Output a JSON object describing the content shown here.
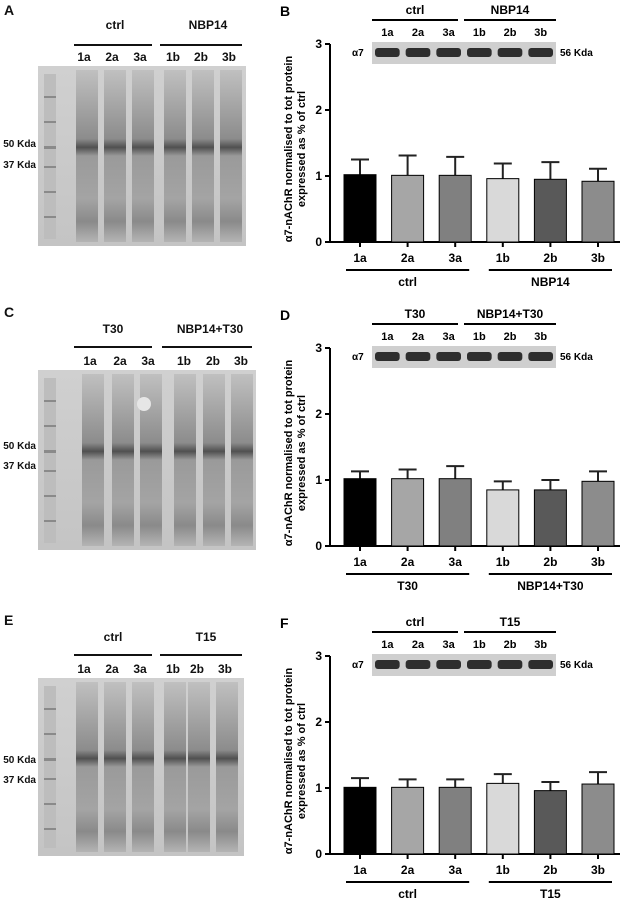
{
  "gels": [
    {
      "letter": "A",
      "group1_label": "ctrl",
      "group2_label": "NBP14",
      "lanes": [
        "1a",
        "2a",
        "3a",
        "1b",
        "2b",
        "3b"
      ],
      "markers": [
        "50 Kda",
        "37 Kda"
      ]
    },
    {
      "letter": "C",
      "group1_label": "T30",
      "group2_label": "NBP14+T30",
      "lanes": [
        "1a",
        "2a",
        "3a",
        "1b",
        "2b",
        "3b"
      ],
      "markers": [
        "50 Kda",
        "37 Kda"
      ]
    },
    {
      "letter": "E",
      "group1_label": "ctrl",
      "group2_label": "T15",
      "lanes": [
        "1a",
        "2a",
        "3a",
        "1b",
        "2b",
        "3b"
      ],
      "markers": [
        "50 Kda",
        "37 Kda"
      ]
    }
  ],
  "chart_data": [
    {
      "panel": "B",
      "type": "bar",
      "ylabel_line1": "α7-nAChR normalised to tot protein",
      "ylabel_line2": "expressed as % of ctrl",
      "ylim": [
        0,
        3
      ],
      "yticks": [
        "0",
        "1",
        "2",
        "3"
      ],
      "categories": [
        "1a",
        "2a",
        "3a",
        "1b",
        "2b",
        "3b"
      ],
      "values": [
        1.02,
        1.01,
        1.01,
        0.96,
        0.95,
        0.92
      ],
      "errors": [
        0.23,
        0.3,
        0.28,
        0.23,
        0.26,
        0.19
      ],
      "colors": [
        "#000000",
        "#a6a6a6",
        "#808080",
        "#d9d9d9",
        "#595959",
        "#8c8c8c"
      ],
      "group1_label": "ctrl",
      "group2_label": "NBP14",
      "blot_label": "α7",
      "blot_kda": "56 Kda"
    },
    {
      "panel": "D",
      "type": "bar",
      "ylabel_line1": "α7-nAChR normalised to tot protein",
      "ylabel_line2": "expressed as % of ctrl",
      "ylim": [
        0,
        3
      ],
      "yticks": [
        "0",
        "1",
        "2",
        "3"
      ],
      "categories": [
        "1a",
        "2a",
        "3a",
        "1b",
        "2b",
        "3b"
      ],
      "values": [
        1.02,
        1.02,
        1.02,
        0.85,
        0.85,
        0.98
      ],
      "errors": [
        0.11,
        0.14,
        0.19,
        0.13,
        0.15,
        0.15
      ],
      "colors": [
        "#000000",
        "#a6a6a6",
        "#808080",
        "#d9d9d9",
        "#595959",
        "#8c8c8c"
      ],
      "group1_label": "T30",
      "group2_label": "NBP14+T30",
      "blot_label": "α7",
      "blot_kda": "56 Kda"
    },
    {
      "panel": "F",
      "type": "bar",
      "ylabel_line1": "α7-nAChR normalised to tot protein",
      "ylabel_line2": "expressed as % of ctrl",
      "ylim": [
        0,
        3
      ],
      "yticks": [
        "0",
        "1",
        "2",
        "3"
      ],
      "categories": [
        "1a",
        "2a",
        "3a",
        "1b",
        "2b",
        "3b"
      ],
      "values": [
        1.01,
        1.01,
        1.01,
        1.07,
        0.96,
        1.06
      ],
      "errors": [
        0.14,
        0.12,
        0.12,
        0.14,
        0.13,
        0.18
      ],
      "colors": [
        "#000000",
        "#a6a6a6",
        "#808080",
        "#d9d9d9",
        "#595959",
        "#8c8c8c"
      ],
      "group1_label": "ctrl",
      "group2_label": "T15",
      "blot_label": "α7",
      "blot_kda": "56 Kda"
    }
  ]
}
